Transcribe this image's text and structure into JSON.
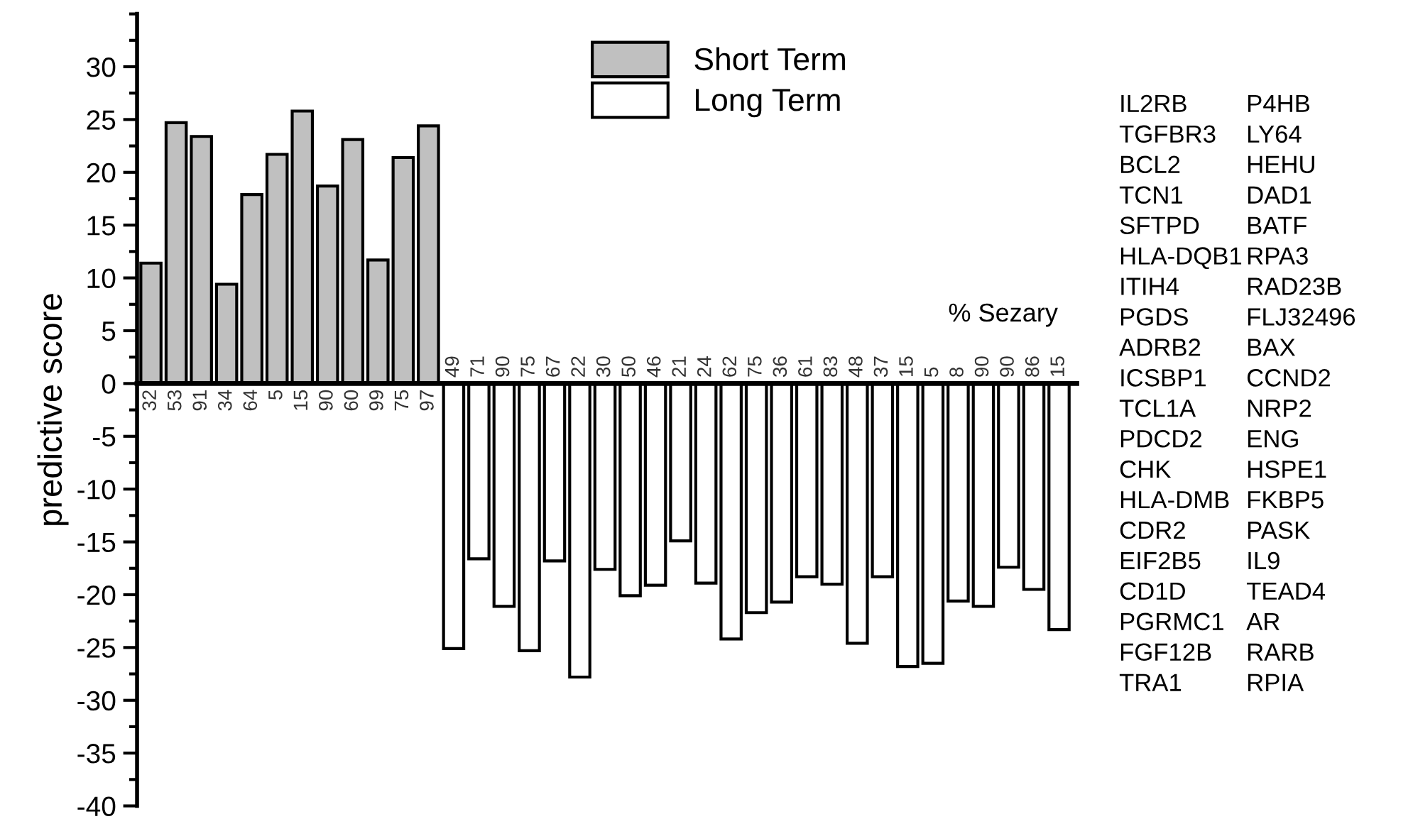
{
  "chart_data": {
    "type": "bar",
    "ylabel": "predictive score",
    "categories": [
      "32",
      "53",
      "91",
      "34",
      "64",
      "5",
      "15",
      "90",
      "60",
      "99",
      "75",
      "97",
      "49",
      "71",
      "90",
      "75",
      "67",
      "22",
      "30",
      "50",
      "46",
      "21",
      "24",
      "62",
      "75",
      "36",
      "61",
      "83",
      "48",
      "37",
      "15",
      "5",
      "8",
      "90",
      "90",
      "86",
      "15"
    ],
    "series": [
      {
        "name": "Short Term",
        "color": "#c0c0c0",
        "values": [
          11.4,
          24.7,
          23.4,
          9.4,
          17.9,
          21.7,
          25.8,
          18.7,
          23.1,
          11.7,
          21.4,
          24.4,
          null,
          null,
          null,
          null,
          null,
          null,
          null,
          null,
          null,
          null,
          null,
          null,
          null,
          null,
          null,
          null,
          null,
          null,
          null,
          null,
          null,
          null,
          null,
          null,
          null
        ]
      },
      {
        "name": "Long Term",
        "color": "#ffffff",
        "values": [
          null,
          null,
          null,
          null,
          null,
          null,
          null,
          null,
          null,
          null,
          null,
          null,
          -25.1,
          -16.6,
          -21.1,
          -25.3,
          -16.8,
          -27.8,
          -17.6,
          -20.1,
          -19.1,
          -14.9,
          -18.9,
          -24.2,
          -21.7,
          -20.7,
          -18.3,
          -19.0,
          -24.6,
          -18.3,
          -26.8,
          -26.5,
          -20.6,
          -21.1,
          -17.4,
          -19.5,
          -23.3
        ]
      }
    ],
    "ylim": [
      -40,
      35
    ],
    "yticks": [
      -40,
      -35,
      -30,
      -25,
      -20,
      -15,
      -10,
      -5,
      0,
      5,
      10,
      15,
      20,
      25,
      30
    ],
    "legend": "top",
    "grid": false,
    "annotations": [
      "% Sezary",
      "IL2RB\nTGFBR3\nBCL2\nTCN1\nSFTPD\nHLA-DQB1\nITIH4\nPGDS\nADRB2\nICSBP1\nTCL1A\nPDCD2\nCHK\nHLA-DMB\nCDR2\nEIF2B5\nCD1D\nPGRMC1\nFGF12B\nTRA1",
      "P4HB\nLY64\nHEHU\nDAD1\nBATF\nRPA3\nRAD23B\nFLJ32496\nBAX\nCCND2\nNRP2\nENG\nHSPE1\nFKBP5\nPASK\nIL9\nTEAD4\nAR\nRARB\nRPIA"
    ]
  }
}
